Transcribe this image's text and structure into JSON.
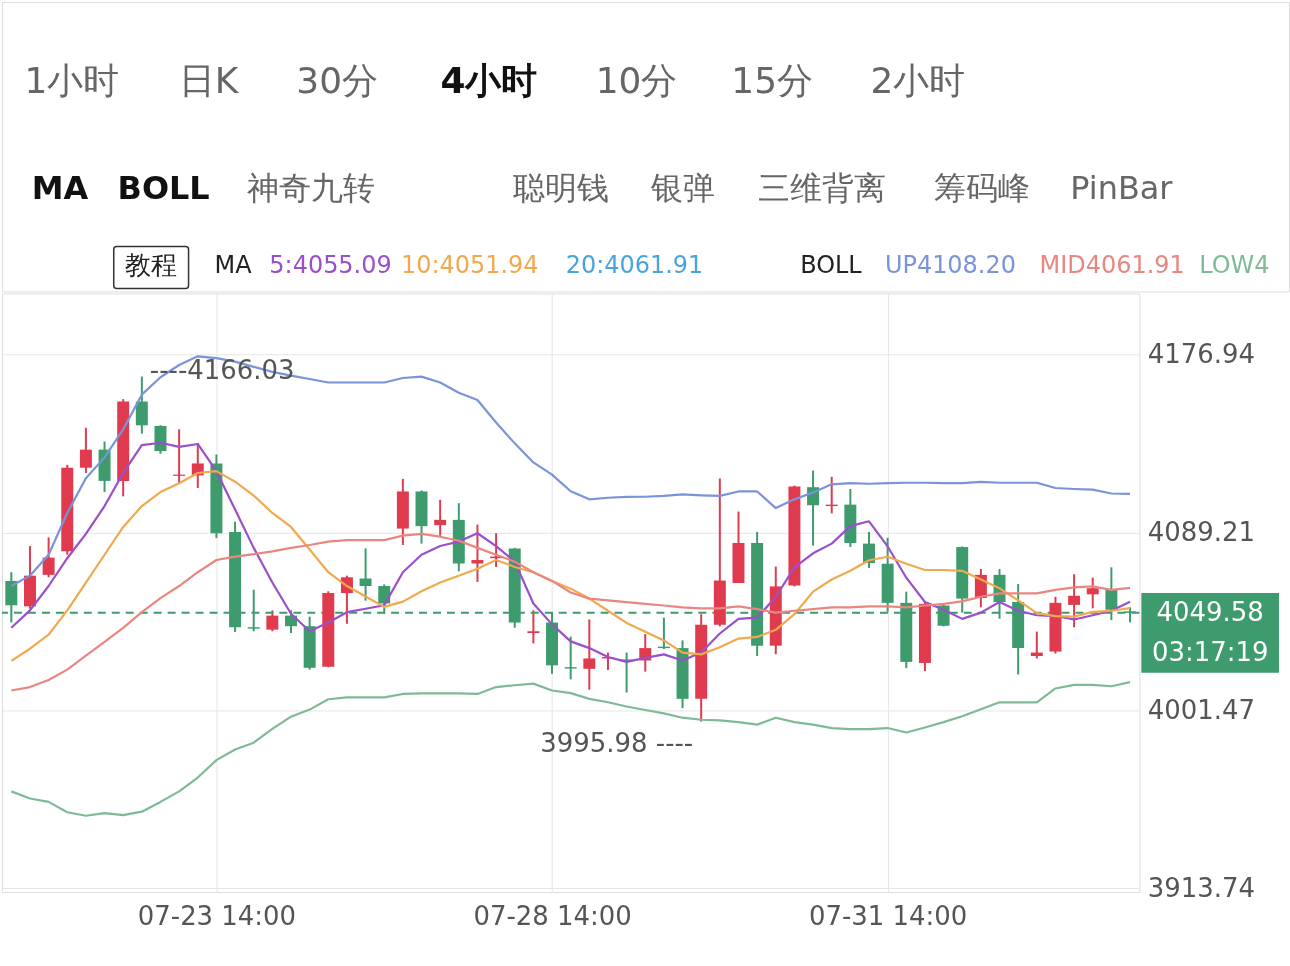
{
  "chart_data": {
    "type": "candlestick",
    "categories": [
      null,
      null,
      null,
      null,
      null,
      null,
      null,
      null,
      null,
      null,
      null,
      "07-23 14:00",
      null,
      null,
      null,
      null,
      null,
      null,
      null,
      null,
      null,
      null,
      null,
      null,
      null,
      null,
      null,
      null,
      null,
      "07-28 14:00",
      null,
      null,
      null,
      null,
      null,
      null,
      null,
      null,
      null,
      null,
      null,
      null,
      null,
      null,
      null,
      null,
      null,
      "07-31 14:00",
      null,
      null,
      null,
      null,
      null,
      null,
      null,
      null,
      null,
      null,
      null,
      null,
      null
    ],
    "ohlc": [
      [
        4065.3,
        4069.6,
        4044.8,
        4053.3
      ],
      [
        4052.8,
        4082.5,
        4051.6,
        4067.9
      ],
      [
        4068.3,
        4086.8,
        4067.1,
        4076.8
      ],
      [
        4079.9,
        4122.5,
        4078.2,
        4121.1
      ],
      [
        4121.1,
        4140.8,
        4118.5,
        4130.0
      ],
      [
        4130.0,
        4134.0,
        4109.1,
        4114.6
      ],
      [
        4114.6,
        4154.9,
        4107.0,
        4153.7
      ],
      [
        4153.7,
        4166.03,
        4137.9,
        4142.0
      ],
      [
        4141.7,
        4142.0,
        4128.0,
        4129.3
      ],
      [
        4117.1,
        4140.0,
        4113.4,
        4117.7
      ],
      [
        4117.3,
        4133.1,
        4111.1,
        4123.2
      ],
      [
        4123.2,
        4127.6,
        4086.4,
        4088.8
      ],
      [
        4089.4,
        4094.5,
        4040.1,
        4042.5
      ],
      [
        4042.5,
        4061.0,
        4040.5,
        4041.8
      ],
      [
        4041.3,
        4050.8,
        4040.5,
        4048.2
      ],
      [
        4048.2,
        4050.8,
        4039.6,
        4043.0
      ],
      [
        4043.0,
        4047.7,
        4021.6,
        4022.5
      ],
      [
        4023.0,
        4060.2,
        4022.8,
        4059.3
      ],
      [
        4059.3,
        4067.9,
        4044.2,
        4067.1
      ],
      [
        4066.5,
        4081.3,
        4055.6,
        4062.8
      ],
      [
        4062.8,
        4063.6,
        4049.1,
        4054.2
      ],
      [
        4091.1,
        4115.6,
        4083.0,
        4109.4
      ],
      [
        4109.4,
        4109.9,
        4083.7,
        4092.3
      ],
      [
        4092.8,
        4105.3,
        4087.6,
        4095.4
      ],
      [
        4095.4,
        4103.6,
        4070.0,
        4073.9
      ],
      [
        4073.9,
        4093.1,
        4064.8,
        4075.6
      ],
      [
        4076.5,
        4088.8,
        4072.2,
        4077.3
      ],
      [
        4081.3,
        4081.6,
        4042.2,
        4044.8
      ],
      [
        4039.6,
        4050.8,
        4034.5,
        4040.5
      ],
      [
        4044.8,
        4049.9,
        4019.5,
        4023.7
      ],
      [
        4022.8,
        4037.9,
        4016.8,
        4022.1
      ],
      [
        4022.0,
        4046.3,
        4011.7,
        4027.1
      ],
      [
        4027.1,
        4030.0,
        4021.4,
        4027.8
      ],
      [
        4026.6,
        4030.0,
        4010.3,
        4025.7
      ],
      [
        4026.1,
        4039.1,
        4020.6,
        4032.2
      ],
      [
        4032.9,
        4047.2,
        4031.7,
        4032.2
      ],
      [
        4032.2,
        4036.0,
        4002.6,
        4007.2
      ],
      [
        4007.2,
        4048.9,
        3995.98,
        4043.7
      ],
      [
        4043.7,
        4115.8,
        4042.9,
        4065.5
      ],
      [
        4064.3,
        4099.5,
        4064.3,
        4084.0
      ],
      [
        4084.0,
        4089.5,
        4028.3,
        4033.4
      ],
      [
        4033.4,
        4072.4,
        4029.2,
        4062.6
      ],
      [
        4063.1,
        4112.3,
        4062.6,
        4111.8
      ],
      [
        4111.5,
        4119.7,
        4082.7,
        4102.6
      ],
      [
        4102.2,
        4116.6,
        4098.6,
        4102.9
      ],
      [
        4102.9,
        4110.6,
        4082.0,
        4084.0
      ],
      [
        4083.7,
        4089.5,
        4071.7,
        4074.1
      ],
      [
        4073.8,
        4086.6,
        4050.1,
        4054.5
      ],
      [
        4054.5,
        4060.0,
        4022.3,
        4025.4
      ],
      [
        4024.9,
        4054.9,
        4020.9,
        4054.0
      ],
      [
        4053.2,
        4053.5,
        4042.9,
        4043.2
      ],
      [
        4082.0,
        4082.3,
        4049.7,
        4056.6
      ],
      [
        4056.9,
        4071.2,
        4052.3,
        4068.3
      ],
      [
        4068.3,
        4071.2,
        4046.7,
        4054.9
      ],
      [
        4054.9,
        4063.8,
        4019.2,
        4032.2
      ],
      [
        4028.3,
        4040.3,
        4027.1,
        4030.0
      ],
      [
        4030.5,
        4057.5,
        4029.5,
        4054.5
      ],
      [
        4053.5,
        4068.6,
        4042.5,
        4058.0
      ],
      [
        4058.7,
        4066.9,
        4051.8,
        4061.7
      ],
      [
        4060.9,
        4072.0,
        4046.0,
        4051.1
      ],
      [
        4050.3,
        4052.3,
        4044.9,
        4049.58
      ]
    ],
    "colors": [
      "#3d9b6e",
      "#e03a4e",
      "#e03a4e",
      "#e03a4e",
      "#e03a4e",
      "#3d9b6e",
      "#e03a4e",
      "#3d9b6e",
      "#3d9b6e",
      "#e03a4e",
      "#e03a4e",
      "#3d9b6e",
      "#3d9b6e",
      "#3d9b6e",
      "#e03a4e",
      "#3d9b6e",
      "#3d9b6e",
      "#e03a4e",
      "#e03a4e",
      "#3d9b6e",
      "#3d9b6e",
      "#e03a4e",
      "#3d9b6e",
      "#e03a4e",
      "#3d9b6e",
      "#e03a4e",
      "#e03a4e",
      "#3d9b6e",
      "#e03a4e",
      "#3d9b6e",
      "#3d9b6e",
      "#e03a4e",
      "#e03a4e",
      "#3d9b6e",
      "#e03a4e",
      "#3d9b6e",
      "#3d9b6e",
      "#e03a4e",
      "#e03a4e",
      "#e03a4e",
      "#3d9b6e",
      "#e03a4e",
      "#e03a4e",
      "#3d9b6e",
      "#e03a4e",
      "#3d9b6e",
      "#3d9b6e",
      "#3d9b6e",
      "#3d9b6e",
      "#e03a4e",
      "#3d9b6e",
      "#3d9b6e",
      "#e03a4e",
      "#3d9b6e",
      "#3d9b6e",
      "#e03a4e",
      "#e03a4e",
      "#e03a4e",
      "#e03a4e",
      "#3d9b6e",
      "#3d9b6e"
    ],
    "series": [
      {
        "name": "5:4055.09",
        "type": "line",
        "color": "#9b4fc9",
        "values": [
          4042.2,
          4050.8,
          4062.8,
          4076.5,
          4088.5,
          4102.2,
          4118.5,
          4132.2,
          4133.4,
          4131.4,
          4132.8,
          4119.4,
          4100.5,
          4081.6,
          4064.5,
          4049.1,
          4040.5,
          4044.8,
          4049.9,
          4051.6,
          4053.3,
          4069.6,
          4078.2,
          4082.5,
          4084.7,
          4088.8,
          4082.5,
          4074.8,
          4054.2,
          4043.9,
          4035.5,
          4032.2,
          4027.8,
          4025.4,
          4027.4,
          4029.1,
          4026.1,
          4030.0,
          4039.4,
          4046.6,
          4047.2,
          4057.4,
          4072.0,
          4078.9,
          4083.7,
          4092.3,
          4094.7,
          4082.3,
          4066.9,
          4054.9,
          4051.1,
          4046.6,
          4049.7,
          4054.9,
          4050.6,
          4048.4,
          4048.0,
          4046.3,
          4048.4,
          4050.6,
          4055.09
        ]
      },
      {
        "name": "10:4051.94",
        "type": "line",
        "color": "#f0a94e",
        "values": [
          4025.9,
          4031.9,
          4038.8,
          4050.8,
          4064.5,
          4078.2,
          4091.9,
          4102.2,
          4109.1,
          4113.4,
          4118.5,
          4119.4,
          4114.2,
          4107.4,
          4098.8,
          4091.9,
          4080.8,
          4069.6,
          4062.8,
          4057.6,
          4052.5,
          4055.1,
          4060.2,
          4064.5,
          4067.9,
          4071.3,
          4075.6,
          4072.2,
          4069.6,
          4065.3,
          4061.5,
          4056.6,
          4050.6,
          4044.6,
          4040.3,
          4036.0,
          4030.0,
          4029.1,
          4032.6,
          4036.9,
          4037.7,
          4041.2,
          4048.9,
          4060.0,
          4066.0,
          4070.3,
          4075.5,
          4077.2,
          4073.8,
          4070.7,
          4070.7,
          4070.3,
          4066.0,
          4061.7,
          4055.7,
          4049.4,
          4048.0,
          4047.7,
          4050.1,
          4050.6,
          4051.94
        ]
      },
      {
        "name": "UP4108.20",
        "type": "line",
        "color": "#7b93d8",
        "values": [
          4062.8,
          4067.9,
          4078.2,
          4098.8,
          4115.9,
          4126.2,
          4140.0,
          4157.1,
          4165.7,
          4171.7,
          4176.0,
          4175.1,
          4173.4,
          4170.8,
          4168.3,
          4166.5,
          4164.8,
          4163.1,
          4163.1,
          4163.1,
          4163.1,
          4165.3,
          4166.0,
          4163.1,
          4158.0,
          4154.5,
          4143.4,
          4133.1,
          4123.7,
          4117.7,
          4109.5,
          4105.5,
          4106.3,
          4106.7,
          4106.8,
          4107.2,
          4108.0,
          4107.5,
          4107.2,
          4109.4,
          4109.4,
          4101.2,
          4105.5,
          4108.9,
          4112.9,
          4113.5,
          4113.2,
          4113.5,
          4113.7,
          4113.7,
          4113.5,
          4113.5,
          4114.1,
          4113.7,
          4113.7,
          4113.7,
          4111.1,
          4110.6,
          4110.3,
          4108.4,
          4108.2
        ]
      },
      {
        "name": "MID4061.91",
        "type": "line",
        "color": "#ea8680",
        "values": [
          4011.3,
          4013.0,
          4016.5,
          4021.6,
          4028.5,
          4035.3,
          4042.2,
          4049.9,
          4056.8,
          4062.8,
          4069.6,
          4075.6,
          4077.3,
          4078.5,
          4079.9,
          4081.6,
          4083.0,
          4084.7,
          4085.4,
          4085.4,
          4085.4,
          4087.6,
          4088.5,
          4087.1,
          4085.1,
          4081.6,
          4078.2,
          4074.8,
          4069.6,
          4065.3,
          4059.6,
          4056.6,
          4055.7,
          4054.9,
          4054.0,
          4053.2,
          4052.3,
          4051.8,
          4051.8,
          4052.8,
          4051.4,
          4049.7,
          4050.6,
          4051.4,
          4052.3,
          4052.3,
          4052.8,
          4052.8,
          4052.3,
          4053.2,
          4054.0,
          4055.2,
          4057.5,
          4059.2,
          4059.2,
          4059.2,
          4060.9,
          4062.1,
          4062.6,
          4060.9,
          4061.91
        ]
      },
      {
        "name": "LOW4",
        "type": "line",
        "color": "#7dba95",
        "values": [
          3961.6,
          3958.1,
          3956.4,
          3951.3,
          3949.6,
          3950.9,
          3949.9,
          3951.6,
          3956.4,
          3961.6,
          3968.4,
          3977.0,
          3982.2,
          3985.6,
          3992.4,
          3998.4,
          4001.9,
          4007.0,
          4007.9,
          4007.9,
          4007.9,
          4009.6,
          4009.9,
          4009.9,
          4009.9,
          4009.6,
          4013.0,
          4013.9,
          4014.7,
          4011.3,
          4010.0,
          4007.2,
          4005.5,
          4003.4,
          4001.7,
          4000.0,
          3997.9,
          3996.9,
          3996.6,
          3995.7,
          3994.5,
          3997.9,
          3995.7,
          3994.5,
          3992.8,
          3992.3,
          3992.3,
          3992.8,
          3990.6,
          3993.1,
          3995.7,
          3998.6,
          4002.1,
          4005.5,
          4005.5,
          4005.5,
          4012.3,
          4014.1,
          4014.1,
          4013.4,
          4015.4
        ]
      }
    ],
    "ylim": [
      3912,
      4207
    ],
    "yticks": [
      3913.74,
      4001.47,
      4089.21,
      4176.94
    ],
    "grid": true,
    "legend": "top",
    "line_style": "solid",
    "ref_lines": [
      {
        "axis": "y",
        "value": 4049.58,
        "label": "4049.58",
        "color": "#3d9b6e",
        "line_style": "dashed"
      }
    ],
    "annotations": [
      "1小时",
      "日K",
      "30分",
      "4小时",
      "10分",
      "15分",
      "2小时",
      "MA",
      "BOLL",
      "神奇九转",
      "聪明钱",
      "银弹",
      "三维背离",
      "筹码峰",
      "PinBar",
      "教程",
      "MA",
      "20:4061.91",
      "BOLL",
      "----4166.03",
      "3995.98 ----",
      "03:17:19"
    ]
  }
}
